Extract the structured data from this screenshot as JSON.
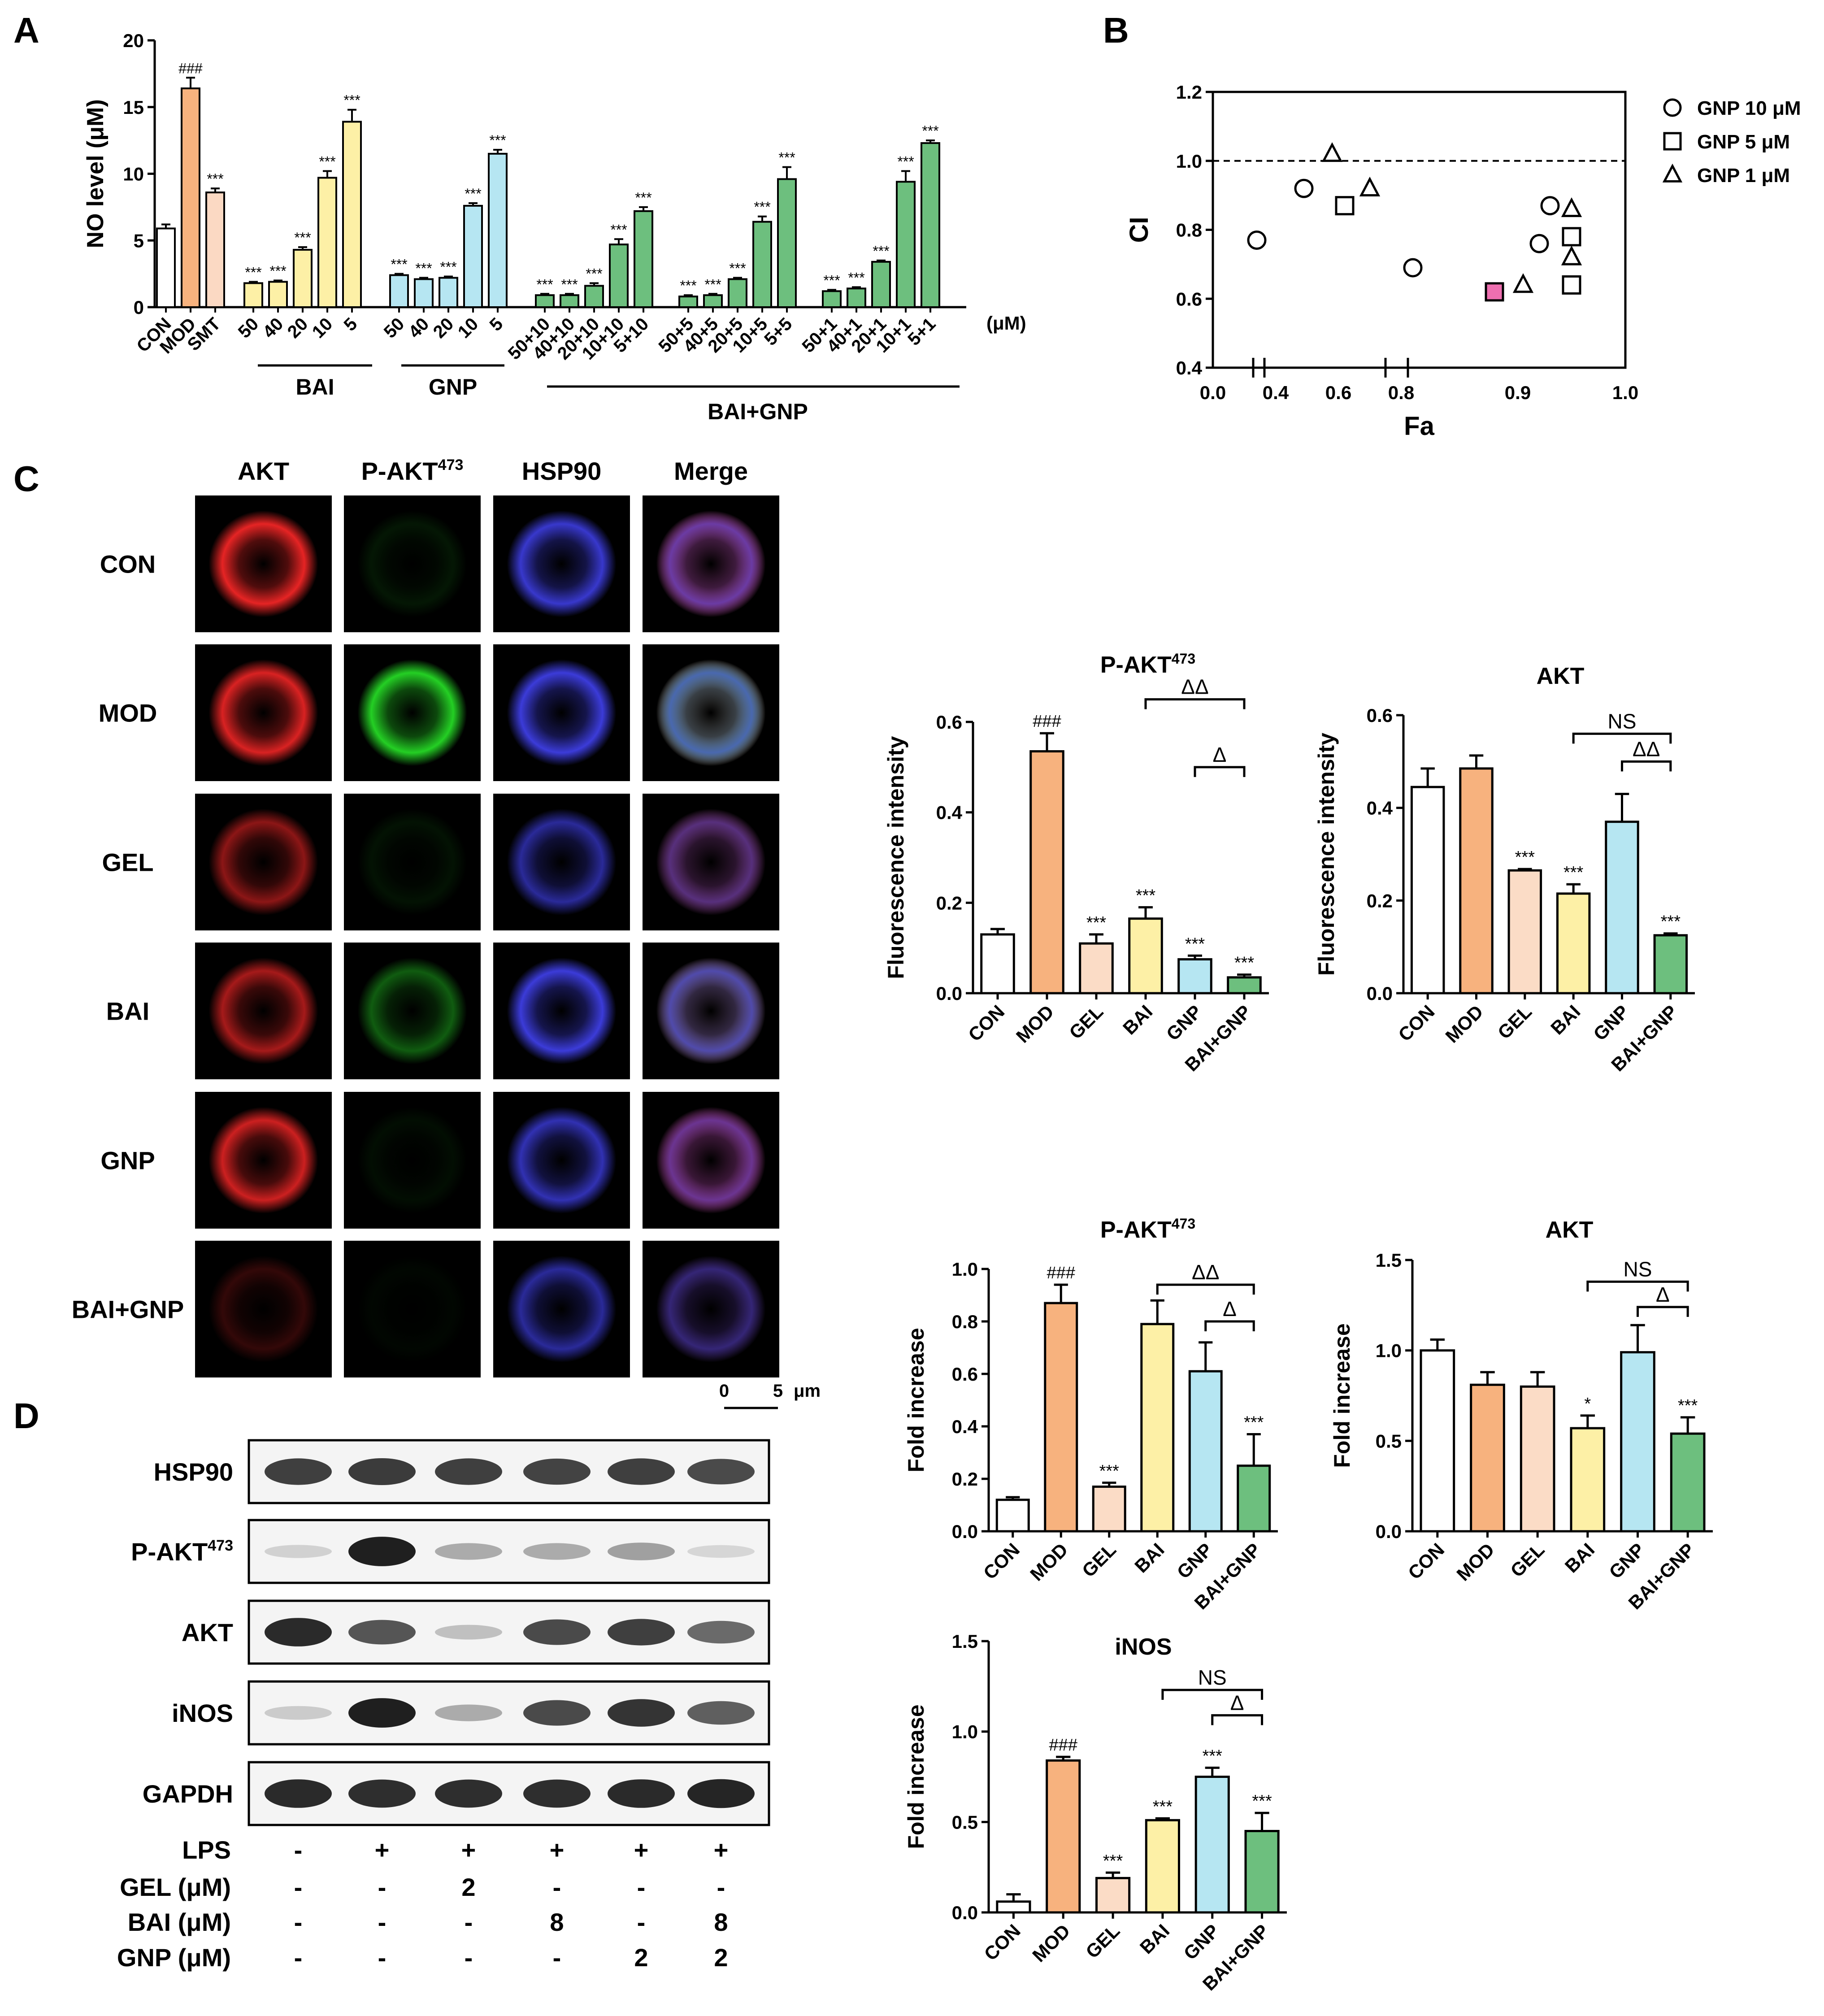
{
  "panel_letters": {
    "a": "A",
    "b": "B",
    "c": "C",
    "d": "D"
  },
  "colors": {
    "CON": "#ffffff",
    "MOD": "#f7b27e",
    "SMT": "#fbd9c3",
    "GEL": "#fbdcc6",
    "BAI": "#fdf0a6",
    "GNP": "#b6e6f2",
    "BAI+GNP": "#6dbf7e",
    "highlight": "#ee6fb0"
  },
  "chart_data": [
    {
      "id": "A",
      "type": "bar",
      "ylabel": "NO level (μM)",
      "ylim": [
        0,
        20
      ],
      "yticks": [
        0,
        5,
        10,
        15,
        20
      ],
      "unit_note": "(μM)",
      "groups": [
        {
          "label": "",
          "categories": [
            "CON",
            "MOD",
            "SMT"
          ],
          "values": [
            5.9,
            16.4,
            8.6
          ],
          "errors": [
            0.3,
            0.8,
            0.3
          ],
          "sig": [
            "",
            "###",
            "***"
          ],
          "color_keys": [
            "CON",
            "MOD",
            "SMT"
          ]
        },
        {
          "label": "BAI",
          "categories": [
            "50",
            "40",
            "20",
            "10",
            "5"
          ],
          "values": [
            1.8,
            1.9,
            4.3,
            9.7,
            13.9
          ],
          "errors": [
            0.1,
            0.1,
            0.2,
            0.5,
            0.9
          ],
          "sig": [
            "***",
            "***",
            "***",
            "***",
            "***"
          ],
          "color_keys": [
            "BAI",
            "BAI",
            "BAI",
            "BAI",
            "BAI"
          ]
        },
        {
          "label": "GNP",
          "categories": [
            "50",
            "40",
            "20",
            "10",
            "5"
          ],
          "values": [
            2.4,
            2.1,
            2.2,
            7.6,
            11.5
          ],
          "errors": [
            0.1,
            0.1,
            0.1,
            0.2,
            0.3
          ],
          "sig": [
            "***",
            "***",
            "***",
            "***",
            "***"
          ],
          "color_keys": [
            "GNP",
            "GNP",
            "GNP",
            "GNP",
            "GNP"
          ]
        },
        {
          "label": "",
          "categories": [
            "50+10",
            "40+10",
            "20+10",
            "10+10",
            "5+10"
          ],
          "values": [
            0.9,
            0.9,
            1.6,
            4.7,
            7.2
          ],
          "errors": [
            0.1,
            0.1,
            0.2,
            0.4,
            0.3
          ],
          "sig": [
            "***",
            "***",
            "***",
            "***",
            "***"
          ],
          "color_keys": [
            "BAI+GNP",
            "BAI+GNP",
            "BAI+GNP",
            "BAI+GNP",
            "BAI+GNP"
          ]
        },
        {
          "label": "",
          "categories": [
            "50+5",
            "40+5",
            "20+5",
            "10+5",
            "5+5"
          ],
          "values": [
            0.8,
            0.9,
            2.1,
            6.4,
            9.6
          ],
          "errors": [
            0.1,
            0.1,
            0.1,
            0.4,
            0.9
          ],
          "sig": [
            "***",
            "***",
            "***",
            "***",
            "***"
          ],
          "color_keys": [
            "BAI+GNP",
            "BAI+GNP",
            "BAI+GNP",
            "BAI+GNP",
            "BAI+GNP"
          ]
        },
        {
          "label": "",
          "categories": [
            "50+1",
            "40+1",
            "20+1",
            "10+1",
            "5+1"
          ],
          "values": [
            1.2,
            1.4,
            3.4,
            9.4,
            12.3
          ],
          "errors": [
            0.1,
            0.1,
            0.1,
            0.8,
            0.2
          ],
          "sig": [
            "***",
            "***",
            "***",
            "***",
            "***"
          ],
          "color_keys": [
            "BAI+GNP",
            "BAI+GNP",
            "BAI+GNP",
            "BAI+GNP",
            "BAI+GNP"
          ]
        }
      ],
      "combo_label": "BAI+GNP"
    },
    {
      "id": "B",
      "type": "scatter",
      "xlabel": "Fa",
      "ylabel": "CI",
      "xticks": [
        "0.0",
        "0.4",
        "0.6",
        "0.8",
        "0.9",
        "1.0"
      ],
      "yticks": [
        "0.4",
        "0.6",
        "0.8",
        "1.0",
        "1.2"
      ],
      "ylim": [
        0.4,
        1.2
      ],
      "reference_line": 1.0,
      "series": [
        {
          "name": "GNP 10 μM",
          "marker": "circle",
          "points": [
            [
              0.28,
              0.77
            ],
            [
              0.49,
              0.92
            ],
            [
              0.81,
              0.69
            ],
            [
              0.92,
              0.76
            ],
            [
              0.93,
              0.87
            ]
          ]
        },
        {
          "name": "GNP 5 μM",
          "marker": "square",
          "points": [
            [
              0.62,
              0.87
            ],
            [
              0.88,
              0.62
            ],
            [
              0.95,
              0.78
            ],
            [
              0.95,
              0.64
            ]
          ]
        },
        {
          "name": "GNP 1 μM",
          "marker": "triangle",
          "points": [
            [
              0.58,
              1.02
            ],
            [
              0.7,
              0.92
            ],
            [
              0.905,
              0.64
            ],
            [
              0.95,
              0.72
            ],
            [
              0.95,
              0.86
            ]
          ]
        }
      ],
      "highlight_point": [
        0.88,
        0.62
      ]
    },
    {
      "id": "C1",
      "type": "bar",
      "title": "P-AKT",
      "title_sup": "473",
      "ylabel": "Fluorescence intensity",
      "ylim": [
        0,
        0.6
      ],
      "yticks": [
        "0.0",
        "0.2",
        "0.4",
        "0.6"
      ],
      "categories": [
        "CON",
        "MOD",
        "GEL",
        "BAI",
        "GNP",
        "BAI+GNP"
      ],
      "values": [
        0.13,
        0.535,
        0.11,
        0.165,
        0.075,
        0.035
      ],
      "errors": [
        0.012,
        0.04,
        0.02,
        0.025,
        0.008,
        0.006
      ],
      "sig": [
        "",
        "###",
        "***",
        "***",
        "***",
        "***"
      ],
      "brackets": [
        {
          "from": 3,
          "to": 5,
          "label": "ΔΔ",
          "level": 0.65
        },
        {
          "from": 4,
          "to": 5,
          "label": "Δ",
          "level": 0.5
        }
      ]
    },
    {
      "id": "C2",
      "type": "bar",
      "title": "AKT",
      "ylabel": "Fluorescence intensity",
      "ylim": [
        0,
        0.6
      ],
      "yticks": [
        "0.0",
        "0.2",
        "0.4",
        "0.6"
      ],
      "categories": [
        "CON",
        "MOD",
        "GEL",
        "BAI",
        "GNP",
        "BAI+GNP"
      ],
      "values": [
        0.445,
        0.485,
        0.265,
        0.215,
        0.37,
        0.125
      ],
      "errors": [
        0.04,
        0.028,
        0.003,
        0.02,
        0.06,
        0.004
      ],
      "sig": [
        "",
        "",
        "***",
        "***",
        "",
        "***"
      ],
      "brackets": [
        {
          "from": 3,
          "to": 5,
          "label": "NS",
          "level": 0.56
        },
        {
          "from": 4,
          "to": 5,
          "label": "ΔΔ",
          "level": 0.5
        }
      ]
    },
    {
      "id": "D1",
      "type": "bar",
      "title": "P-AKT",
      "title_sup": "473",
      "ylabel": "Fold increase",
      "ylim": [
        0,
        1.0
      ],
      "yticks": [
        "0.0",
        "0.2",
        "0.4",
        "0.6",
        "0.8",
        "1.0"
      ],
      "categories": [
        "CON",
        "MOD",
        "GEL",
        "BAI",
        "GNP",
        "BAI+GNP"
      ],
      "values": [
        0.12,
        0.87,
        0.17,
        0.79,
        0.61,
        0.25
      ],
      "errors": [
        0.01,
        0.07,
        0.015,
        0.09,
        0.11,
        0.12
      ],
      "sig": [
        "",
        "###",
        "***",
        "",
        "",
        "***"
      ],
      "brackets": [
        {
          "from": 3,
          "to": 5,
          "label": "ΔΔ",
          "level": 0.94
        },
        {
          "from": 4,
          "to": 5,
          "label": "Δ",
          "level": 0.8
        }
      ]
    },
    {
      "id": "D2",
      "type": "bar",
      "title": "AKT",
      "ylabel": "Fold increase",
      "ylim": [
        0,
        1.5
      ],
      "yticks": [
        "0.0",
        "0.5",
        "1.0",
        "1.5"
      ],
      "categories": [
        "CON",
        "MOD",
        "GEL",
        "BAI",
        "GNP",
        "BAI+GNP"
      ],
      "values": [
        1.0,
        0.81,
        0.8,
        0.57,
        0.99,
        0.54
      ],
      "errors": [
        0.06,
        0.07,
        0.08,
        0.07,
        0.15,
        0.09
      ],
      "sig": [
        "",
        "",
        "",
        "*",
        "",
        "***"
      ],
      "brackets": [
        {
          "from": 3,
          "to": 5,
          "label": "NS",
          "level": 1.38
        },
        {
          "from": 4,
          "to": 5,
          "label": "Δ",
          "level": 1.24
        }
      ]
    },
    {
      "id": "D3",
      "type": "bar",
      "title": "iNOS",
      "ylabel": "Fold increase",
      "ylim": [
        0,
        1.5
      ],
      "yticks": [
        "0.0",
        "0.5",
        "1.0",
        "1.5"
      ],
      "categories": [
        "CON",
        "MOD",
        "GEL",
        "BAI",
        "GNP",
        "BAI+GNP"
      ],
      "values": [
        0.06,
        0.84,
        0.19,
        0.51,
        0.75,
        0.45
      ],
      "errors": [
        0.04,
        0.02,
        0.03,
        0.01,
        0.05,
        0.1
      ],
      "sig": [
        "",
        "###",
        "***",
        "***",
        "***",
        "***"
      ],
      "brackets": [
        {
          "from": 3,
          "to": 5,
          "label": "NS",
          "level": 1.23
        },
        {
          "from": 4,
          "to": 5,
          "label": "Δ",
          "level": 1.09
        }
      ]
    }
  ],
  "panel_c": {
    "columns": [
      {
        "text": "AKT",
        "sup": ""
      },
      {
        "text": "P-AKT",
        "sup": "473"
      },
      {
        "text": "HSP90",
        "sup": ""
      },
      {
        "text": "Merge",
        "sup": ""
      }
    ],
    "rows": [
      "CON",
      "MOD",
      "GEL",
      "BAI",
      "GNP",
      "BAI+GNP"
    ],
    "intensity": {
      "red": [
        0.9,
        0.85,
        0.55,
        0.65,
        0.8,
        0.2
      ],
      "green": [
        0.1,
        0.9,
        0.08,
        0.4,
        0.06,
        0.03
      ],
      "blue": [
        0.8,
        0.85,
        0.6,
        0.85,
        0.7,
        0.6
      ]
    },
    "scalebar": {
      "start": "0",
      "end": "5",
      "unit": "μm"
    }
  },
  "panel_d": {
    "bands": [
      {
        "label": "HSP90",
        "sup": "",
        "strength": [
          0.8,
          0.82,
          0.8,
          0.78,
          0.8,
          0.75
        ]
      },
      {
        "label": "P-AKT",
        "sup": "473",
        "strength": [
          0.12,
          0.95,
          0.3,
          0.3,
          0.35,
          0.1
        ]
      },
      {
        "label": "AKT",
        "sup": "",
        "strength": [
          0.9,
          0.7,
          0.2,
          0.75,
          0.8,
          0.6
        ]
      },
      {
        "label": "iNOS",
        "sup": "",
        "strength": [
          0.15,
          0.95,
          0.3,
          0.75,
          0.85,
          0.65
        ]
      },
      {
        "label": "GAPDH",
        "sup": "",
        "strength": [
          0.9,
          0.88,
          0.88,
          0.88,
          0.9,
          0.92
        ]
      }
    ],
    "treatments": [
      {
        "label": "LPS",
        "values": [
          "-",
          "+",
          "+",
          "+",
          "+",
          "+"
        ]
      },
      {
        "label": "GEL (μM)",
        "values": [
          "-",
          "-",
          "2",
          "-",
          "-",
          "-"
        ]
      },
      {
        "label": "BAI (μM)",
        "values": [
          "-",
          "-",
          "-",
          "8",
          "-",
          "8"
        ]
      },
      {
        "label": "GNP (μM)",
        "values": [
          "-",
          "-",
          "-",
          "-",
          "2",
          "2"
        ]
      }
    ]
  }
}
